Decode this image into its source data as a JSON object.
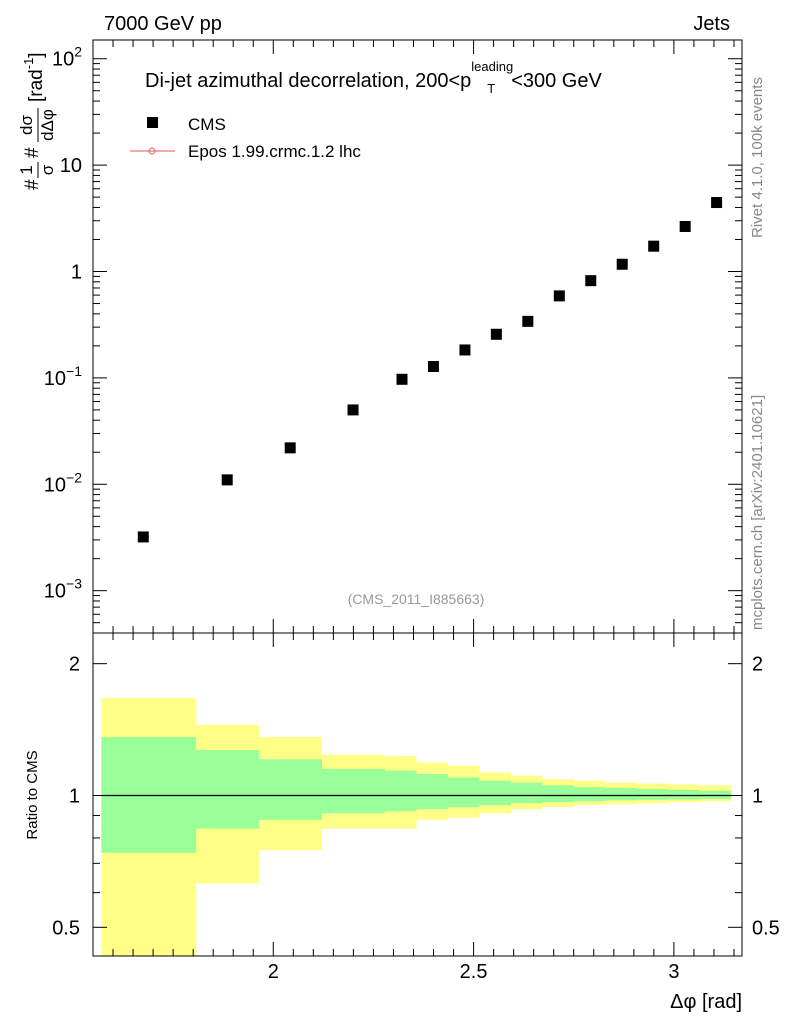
{
  "header": {
    "energy_label": "7000 GeV pp",
    "process_label": "Jets"
  },
  "side_labels": {
    "rivet": "Rivet 4.1.0,  100k events",
    "source": "mcplots.cern.ch [arXiv:2401.10621]"
  },
  "colors": {
    "data_marker": "#000000",
    "mc_line": "#ee7777",
    "band_outer": "#ffff88",
    "band_inner": "#99ff99"
  },
  "chart_data": [
    {
      "type": "scatter",
      "panel": "main",
      "title": "Di-jet azimuthal decorrelation, 200<p_T^leading<300 GeV",
      "title_parts": {
        "pre": "Di-jet azimuthal decorrelation, 200<p",
        "sup": "leading",
        "sub": "T",
        "post": "<300 GeV"
      },
      "ylabel": "#frac{1}{σ}#frac{dσ}{dΔφ} [rad⁻¹]",
      "ylabel_parts": {
        "num1": "1",
        "den1": "σ",
        "num2": "dσ",
        "den2": "dΔφ",
        "unit": "[rad",
        "unit_sup": "-1",
        "unit_end": "]"
      },
      "yscale": "log",
      "ylim": [
        0.0004,
        150
      ],
      "xlim": [
        1.55,
        3.17
      ],
      "ytick_labels": [
        {
          "value": 100,
          "base": "10",
          "exp": "2"
        },
        {
          "value": 10,
          "text": "10"
        },
        {
          "value": 1,
          "text": "1"
        },
        {
          "value": 0.1,
          "base": "10",
          "exp": "−1"
        },
        {
          "value": 0.01,
          "base": "10",
          "exp": "−2"
        },
        {
          "value": 0.001,
          "base": "10",
          "exp": "−3"
        }
      ],
      "legend": [
        {
          "name": "CMS",
          "marker": "square"
        },
        {
          "name": "Epos 1.99.crmc.1.2 lhc",
          "marker": "line"
        }
      ],
      "watermark": "(CMS_2011_I885663)",
      "series": [
        {
          "name": "CMS",
          "x": [
            1.6755,
            1.885,
            2.0422,
            2.1991,
            2.3213,
            2.3998,
            2.4784,
            2.5569,
            2.6354,
            2.714,
            2.7925,
            2.871,
            2.9496,
            3.0281,
            3.1066
          ],
          "y": [
            0.0032,
            0.011,
            0.022,
            0.05,
            0.097,
            0.128,
            0.183,
            0.257,
            0.34,
            0.59,
            0.82,
            1.17,
            1.73,
            2.65,
            4.45
          ]
        }
      ]
    },
    {
      "type": "area",
      "panel": "ratio",
      "xlabel": "Δφ [rad]",
      "ylabel": "Ratio to CMS",
      "yscale": "log",
      "ylim": [
        0.43,
        2.35
      ],
      "xlim": [
        1.55,
        3.17
      ],
      "xtick_labels": [
        {
          "value": 2.0,
          "text": "2"
        },
        {
          "value": 2.5,
          "text": "2.5"
        },
        {
          "value": 3.0,
          "text": "3"
        }
      ],
      "ytick_labels": [
        {
          "value": 2,
          "text": "2"
        },
        {
          "value": 1,
          "text": "1"
        },
        {
          "value": 0.5,
          "text": "0.5"
        }
      ],
      "bin_edges": [
        1.571,
        1.8064,
        1.963,
        2.1204,
        2.2776,
        2.3562,
        2.4347,
        2.5133,
        2.5918,
        2.6704,
        2.7489,
        2.8274,
        2.906,
        2.9845,
        3.063,
        3.1416
      ],
      "outer_band": {
        "lo": [
          0.42,
          0.63,
          0.75,
          0.84,
          0.84,
          0.88,
          0.89,
          0.91,
          0.93,
          0.94,
          0.95,
          0.955,
          0.96,
          0.965,
          0.97
        ],
        "hi": [
          1.67,
          1.45,
          1.36,
          1.24,
          1.23,
          1.19,
          1.17,
          1.13,
          1.11,
          1.09,
          1.08,
          1.07,
          1.065,
          1.06,
          1.055
        ]
      },
      "inner_band": {
        "lo": [
          0.74,
          0.84,
          0.88,
          0.91,
          0.92,
          0.93,
          0.94,
          0.95,
          0.96,
          0.965,
          0.97,
          0.975,
          0.978,
          0.98,
          0.982
        ],
        "hi": [
          1.36,
          1.27,
          1.21,
          1.15,
          1.14,
          1.12,
          1.1,
          1.08,
          1.07,
          1.055,
          1.045,
          1.04,
          1.035,
          1.03,
          1.025
        ]
      },
      "reference_line": 1
    }
  ]
}
